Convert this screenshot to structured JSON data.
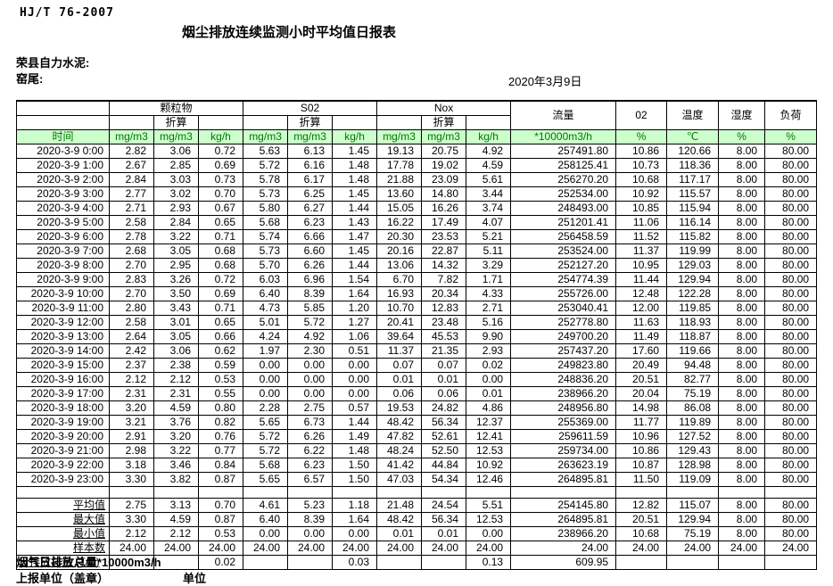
{
  "doc": {
    "standard": "HJ/T  76-2007",
    "title": "烟尘排放连续监测小时平均值日报表",
    "company": "荣县自力水泥:",
    "location": "窑尾:",
    "date": "2020年3月9日"
  },
  "header": {
    "time_label": "时间",
    "groups": [
      {
        "label": "颗粒物",
        "sub2": "折算",
        "units": [
          "mg/m3",
          "mg/m3",
          "kg/h"
        ]
      },
      {
        "label": "S02",
        "sub2": "折算",
        "units": [
          "mg/m3",
          "mg/m3",
          "kg/h"
        ]
      },
      {
        "label": "Nox",
        "sub2": "折算",
        "units": [
          "mg/m3",
          "mg/m3",
          "kg/h"
        ]
      }
    ],
    "singles": [
      {
        "label": "流量",
        "unit": "*10000m3/h"
      },
      {
        "label": "02",
        "unit": "%"
      },
      {
        "label": "温度",
        "unit": "℃"
      },
      {
        "label": "湿度",
        "unit": "%"
      },
      {
        "label": "负荷",
        "unit": "%"
      }
    ]
  },
  "table": {
    "rows": [
      [
        "2020-3-9 0:00",
        "2.82",
        "3.06",
        "0.72",
        "5.63",
        "6.13",
        "1.45",
        "19.13",
        "20.75",
        "4.92",
        "257491.80",
        "10.86",
        "120.66",
        "8.00",
        "80.00"
      ],
      [
        "2020-3-9 1:00",
        "2.67",
        "2.85",
        "0.69",
        "5.72",
        "6.16",
        "1.48",
        "17.78",
        "19.02",
        "4.59",
        "258125.41",
        "10.73",
        "118.36",
        "8.00",
        "80.00"
      ],
      [
        "2020-3-9 2:00",
        "2.84",
        "3.03",
        "0.73",
        "5.78",
        "6.17",
        "1.48",
        "21.88",
        "23.09",
        "5.61",
        "256270.20",
        "10.68",
        "117.17",
        "8.00",
        "80.00"
      ],
      [
        "2020-3-9 3:00",
        "2.77",
        "3.02",
        "0.70",
        "5.73",
        "6.25",
        "1.45",
        "13.60",
        "14.80",
        "3.44",
        "252534.00",
        "10.92",
        "115.57",
        "8.00",
        "80.00"
      ],
      [
        "2020-3-9 4:00",
        "2.71",
        "2.93",
        "0.67",
        "5.80",
        "6.27",
        "1.44",
        "15.05",
        "16.26",
        "3.74",
        "248493.00",
        "10.85",
        "115.94",
        "8.00",
        "80.00"
      ],
      [
        "2020-3-9 5:00",
        "2.58",
        "2.84",
        "0.65",
        "5.68",
        "6.23",
        "1.43",
        "16.22",
        "17.49",
        "4.07",
        "251201.41",
        "11.06",
        "116.14",
        "8.00",
        "80.00"
      ],
      [
        "2020-3-9 6:00",
        "2.78",
        "3.22",
        "0.71",
        "5.74",
        "6.66",
        "1.47",
        "20.30",
        "23.53",
        "5.21",
        "256458.59",
        "11.52",
        "115.82",
        "8.00",
        "80.00"
      ],
      [
        "2020-3-9 7:00",
        "2.68",
        "3.05",
        "0.68",
        "5.73",
        "6.60",
        "1.45",
        "20.16",
        "22.87",
        "5.11",
        "253524.00",
        "11.37",
        "119.99",
        "8.00",
        "80.00"
      ],
      [
        "2020-3-9 8:00",
        "2.70",
        "2.95",
        "0.68",
        "5.70",
        "6.26",
        "1.44",
        "13.06",
        "14.32",
        "3.29",
        "252127.20",
        "10.95",
        "129.03",
        "8.00",
        "80.00"
      ],
      [
        "2020-3-9 9:00",
        "2.83",
        "3.26",
        "0.72",
        "6.03",
        "6.96",
        "1.54",
        "6.70",
        "7.82",
        "1.71",
        "254774.39",
        "11.44",
        "129.94",
        "8.00",
        "80.00"
      ],
      [
        "2020-3-9 10:00",
        "2.70",
        "3.50",
        "0.69",
        "6.40",
        "8.39",
        "1.64",
        "16.93",
        "20.34",
        "4.33",
        "255726.00",
        "12.48",
        "122.28",
        "8.00",
        "80.00"
      ],
      [
        "2020-3-9 11:00",
        "2.80",
        "3.43",
        "0.71",
        "4.73",
        "5.85",
        "1.20",
        "10.70",
        "12.83",
        "2.71",
        "253040.41",
        "12.00",
        "119.85",
        "8.00",
        "80.00"
      ],
      [
        "2020-3-9 12:00",
        "2.58",
        "3.01",
        "0.65",
        "5.01",
        "5.72",
        "1.27",
        "20.41",
        "23.48",
        "5.16",
        "252778.80",
        "11.63",
        "118.93",
        "8.00",
        "80.00"
      ],
      [
        "2020-3-9 13:00",
        "2.64",
        "3.05",
        "0.66",
        "4.24",
        "4.92",
        "1.06",
        "39.64",
        "45.53",
        "9.90",
        "249700.20",
        "11.49",
        "118.87",
        "8.00",
        "80.00"
      ],
      [
        "2020-3-9 14:00",
        "2.42",
        "3.06",
        "0.62",
        "1.97",
        "2.30",
        "0.51",
        "11.37",
        "21.35",
        "2.93",
        "257437.20",
        "17.60",
        "119.66",
        "8.00",
        "80.00"
      ],
      [
        "2020-3-9 15:00",
        "2.37",
        "2.38",
        "0.59",
        "0.00",
        "0.00",
        "0.00",
        "0.07",
        "0.07",
        "0.02",
        "249823.80",
        "20.49",
        "94.48",
        "8.00",
        "80.00"
      ],
      [
        "2020-3-9 16:00",
        "2.12",
        "2.12",
        "0.53",
        "0.00",
        "0.00",
        "0.00",
        "0.01",
        "0.01",
        "0.00",
        "248836.20",
        "20.51",
        "82.77",
        "8.00",
        "80.00"
      ],
      [
        "2020-3-9 17:00",
        "2.31",
        "2.31",
        "0.55",
        "0.00",
        "0.00",
        "0.00",
        "0.06",
        "0.06",
        "0.01",
        "238966.20",
        "20.04",
        "75.19",
        "8.00",
        "80.00"
      ],
      [
        "2020-3-9 18:00",
        "3.20",
        "4.59",
        "0.80",
        "2.28",
        "2.75",
        "0.57",
        "19.53",
        "24.82",
        "4.86",
        "248956.80",
        "14.98",
        "86.08",
        "8.00",
        "80.00"
      ],
      [
        "2020-3-9 19:00",
        "3.21",
        "3.76",
        "0.82",
        "5.65",
        "6.73",
        "1.44",
        "48.42",
        "56.34",
        "12.37",
        "255369.00",
        "11.77",
        "119.89",
        "8.00",
        "80.00"
      ],
      [
        "2020-3-9 20:00",
        "2.91",
        "3.20",
        "0.76",
        "5.72",
        "6.26",
        "1.49",
        "47.82",
        "52.61",
        "12.41",
        "259611.59",
        "10.96",
        "127.52",
        "8.00",
        "80.00"
      ],
      [
        "2020-3-9 21:00",
        "2.98",
        "3.22",
        "0.77",
        "5.72",
        "6.22",
        "1.48",
        "48.24",
        "52.50",
        "12.53",
        "259734.00",
        "10.86",
        "129.43",
        "8.00",
        "80.00"
      ],
      [
        "2020-3-9 22:00",
        "3.18",
        "3.46",
        "0.84",
        "5.68",
        "6.23",
        "1.50",
        "41.42",
        "44.84",
        "10.92",
        "263623.19",
        "10.87",
        "128.98",
        "8.00",
        "80.00"
      ],
      [
        "2020-3-9 23:00",
        "3.30",
        "3.82",
        "0.87",
        "5.65",
        "6.57",
        "1.50",
        "47.03",
        "54.34",
        "12.46",
        "264895.81",
        "11.50",
        "119.09",
        "8.00",
        "80.00"
      ]
    ],
    "summary_rows": [
      [
        "平均值",
        "2.75",
        "3.13",
        "0.70",
        "4.61",
        "5.23",
        "1.18",
        "21.48",
        "24.54",
        "5.51",
        "254145.80",
        "12.82",
        "115.07",
        "8.00",
        "80.00"
      ],
      [
        "最大值",
        "3.30",
        "4.59",
        "0.87",
        "6.40",
        "8.39",
        "1.64",
        "48.42",
        "56.34",
        "12.53",
        "264895.81",
        "20.51",
        "129.94",
        "8.00",
        "80.00"
      ],
      [
        "最小值",
        "2.12",
        "2.12",
        "0.53",
        "0.00",
        "0.00",
        "0.00",
        "0.01",
        "0.01",
        "0.00",
        "238966.20",
        "10.68",
        "75.19",
        "8.00",
        "80.00"
      ],
      [
        "样本数",
        "24.00",
        "24.00",
        "24.00",
        "24.00",
        "24.00",
        "24.00",
        "24.00",
        "24.00",
        "24.00",
        "24.00",
        "24.00",
        "24.00",
        "24.00",
        "24.00"
      ]
    ],
    "daily_total_row": [
      "日排放总量 (T/D)",
      "",
      "",
      "0.02",
      "",
      "",
      "0.03",
      "",
      "",
      "0.13",
      "609.95",
      "",
      "",
      "",
      ""
    ]
  },
  "footer": {
    "flow_note": "烟气日排放总量*10000m3/h",
    "report_unit": "上报单位（盖章）",
    "unit_label": "单位"
  }
}
